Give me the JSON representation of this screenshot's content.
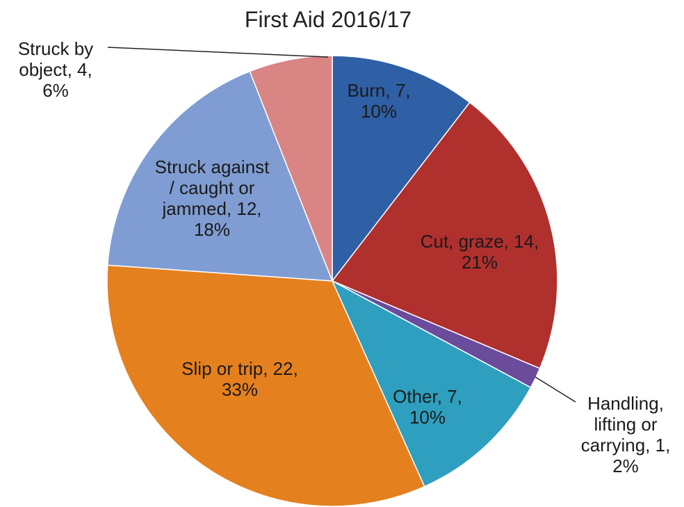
{
  "chart_data": {
    "type": "pie",
    "title": "First Aid 2016/17",
    "values": [
      7,
      14,
      1,
      7,
      22,
      12,
      4
    ],
    "value_labels": [
      "Burn, 7, 10%",
      "Cut, graze, 14, 21%",
      "Handling, lifting or carrying, 1, 2%",
      "Other, 7, 10%",
      "Slip or trip, 22, 33%",
      "Struck against / caught or jammed, 12, 18%",
      "Struck by object, 4, 6%"
    ],
    "colors": [
      "#2f5fa5",
      "#b0302e",
      "#6a4b9c",
      "#2e9fbf",
      "#e5801f",
      "#7f9dd2",
      "#d98584"
    ]
  }
}
